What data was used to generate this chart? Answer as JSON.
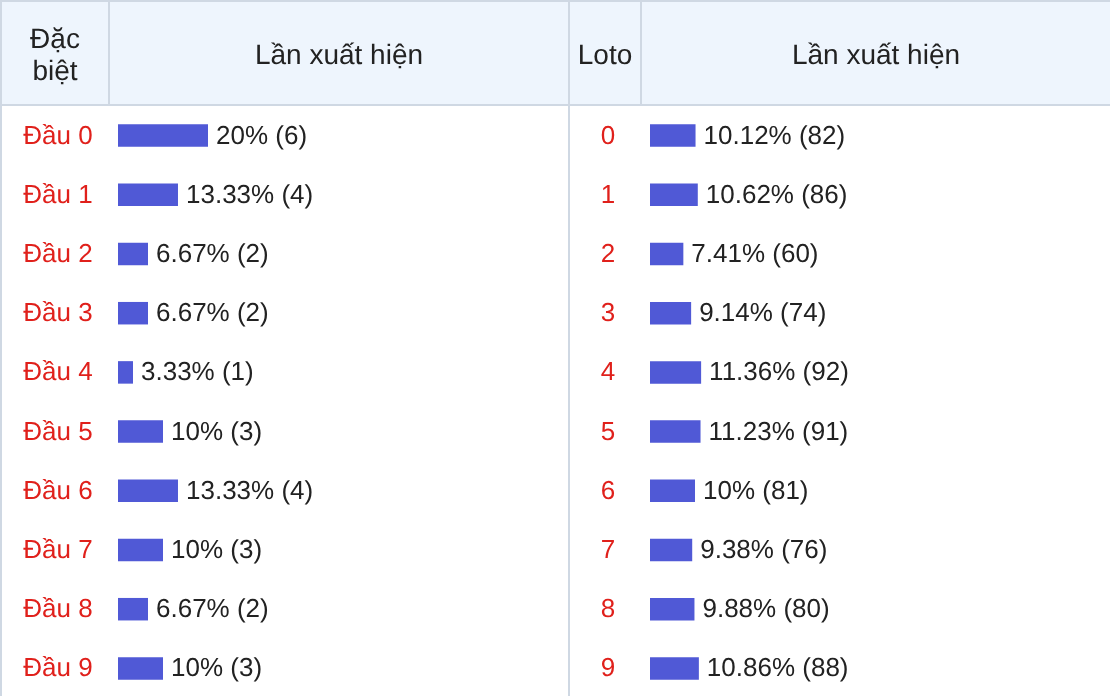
{
  "chart_data": [
    {
      "type": "bar",
      "orientation": "horizontal",
      "ylabel": "Đặc biệt",
      "xlabel": "Lần xuất hiện",
      "tick_labels": "y",
      "color": "#5059d6",
      "categories": [
        "Đầu 0",
        "Đầu 1",
        "Đầu 2",
        "Đầu 3",
        "Đầu 4",
        "Đầu 5",
        "Đầu 6",
        "Đầu 7",
        "Đầu 8",
        "Đầu 9"
      ],
      "values": [
        20,
        13.33,
        6.67,
        6.67,
        3.33,
        10,
        13.33,
        10,
        6.67,
        10
      ],
      "value_labels": [
        "20% (6)",
        "13.33% (4)",
        "6.67% (2)",
        "6.67% (2)",
        "3.33% (1)",
        "10% (3)",
        "13.33% (4)",
        "10% (3)",
        "6.67% (2)",
        "10% (3)"
      ]
    },
    {
      "type": "bar",
      "orientation": "horizontal",
      "ylabel": "Loto",
      "xlabel": "Lần xuất hiện",
      "tick_labels": "y",
      "color": "#5059d6",
      "categories": [
        "0",
        "1",
        "2",
        "3",
        "4",
        "5",
        "6",
        "7",
        "8",
        "9"
      ],
      "values": [
        10.12,
        10.62,
        7.41,
        9.14,
        11.36,
        11.23,
        10,
        9.38,
        9.88,
        10.86
      ],
      "value_labels": [
        "10.12% (82)",
        "10.62% (86)",
        "7.41% (60)",
        "9.14% (74)",
        "11.36% (92)",
        "11.23% (91)",
        "10% (81)",
        "9.38% (76)",
        "9.88% (80)",
        "10.86% (88)"
      ]
    }
  ]
}
